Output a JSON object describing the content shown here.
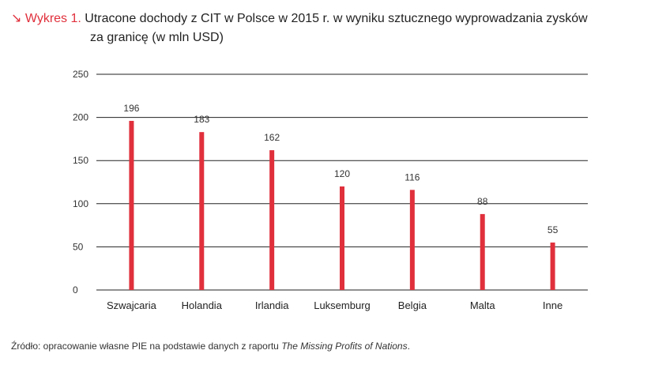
{
  "header": {
    "arrow_icon": "↘",
    "label": "Wykres 1.",
    "title_line1": "Utracone dochody z CIT w Polsce w 2015 r. w wyniku sztucznego wyprowadzania zysków",
    "title_line2": "za granicę (w mln USD)"
  },
  "colors": {
    "accent": "#e0303c",
    "gridline": "#222222",
    "bar": "#e0303c"
  },
  "chart_data": {
    "type": "bar",
    "title": "Utracone dochody z CIT w Polsce w 2015 r. w wyniku sztucznego wyprowadzania zysków za granicę (w mln USD)",
    "xlabel": "",
    "ylabel": "",
    "ylim": [
      0,
      250
    ],
    "yticks": [
      0,
      50,
      100,
      150,
      200,
      250
    ],
    "grid": true,
    "categories": [
      "Szwajcaria",
      "Holandia",
      "Irlandia",
      "Luksemburg",
      "Belgia",
      "Malta",
      "Inne"
    ],
    "values": [
      196,
      183,
      162,
      120,
      116,
      88,
      55
    ]
  },
  "footer": {
    "source_prefix": "Źródło: opracowanie własne PIE na podstawie danych z raportu ",
    "source_title": "The Missing Profits of Nations",
    "source_suffix": "."
  }
}
